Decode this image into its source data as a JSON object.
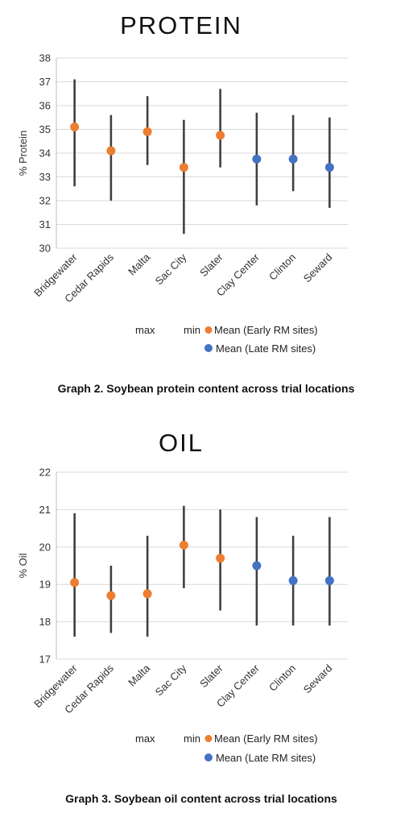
{
  "chart_data": [
    {
      "type": "scatter",
      "title": "PROTEIN",
      "ylabel": "% Protein",
      "ylim": [
        30,
        38
      ],
      "yticks": [
        30,
        31,
        32,
        33,
        34,
        35,
        36,
        37,
        38
      ],
      "grid": true,
      "categories": [
        "Bridgewater",
        "Cedar Rapids",
        "Malta",
        "Sac City",
        "Slater",
        "Clay Center",
        "Clinton",
        "Seward"
      ],
      "max": [
        37.1,
        35.6,
        36.4,
        35.4,
        36.7,
        35.7,
        35.6,
        35.5
      ],
      "min": [
        32.6,
        32.0,
        33.5,
        30.6,
        33.4,
        31.8,
        32.4,
        31.7
      ],
      "mean": [
        35.1,
        34.1,
        34.9,
        33.4,
        34.75,
        33.75,
        33.75,
        33.4
      ],
      "group": [
        "early",
        "early",
        "early",
        "early",
        "early",
        "late",
        "late",
        "late"
      ],
      "legend": {
        "max_label": "max",
        "min_label": "min",
        "early_label": "Mean (Early RM sites)",
        "late_label": "Mean (Late RM sites)",
        "placement": "bottom"
      },
      "caption": "Graph 2. Soybean protein content across trial locations"
    },
    {
      "type": "scatter",
      "title": "OIL",
      "ylabel": "% Oil",
      "ylim": [
        17,
        22
      ],
      "yticks": [
        17,
        18,
        19,
        20,
        21,
        22
      ],
      "grid": true,
      "categories": [
        "Bridgewater",
        "Cedar Rapids",
        "Malta",
        "Sac City",
        "Slater",
        "Clay Center",
        "Clinton",
        "Seward"
      ],
      "max": [
        20.9,
        19.5,
        20.3,
        21.1,
        21.0,
        20.8,
        20.3,
        20.8
      ],
      "min": [
        17.6,
        17.7,
        17.6,
        18.9,
        18.3,
        17.9,
        17.9,
        17.9
      ],
      "mean": [
        19.05,
        18.7,
        18.75,
        20.05,
        19.7,
        19.5,
        19.1,
        19.1
      ],
      "group": [
        "early",
        "early",
        "early",
        "early",
        "early",
        "late",
        "late",
        "late"
      ],
      "legend": {
        "max_label": "max",
        "min_label": "min",
        "early_label": "Mean (Early RM sites)",
        "late_label": "Mean (Late RM sites)",
        "placement": "bottom"
      },
      "caption": "Graph 3.  Soybean oil content across trial locations"
    }
  ],
  "colors": {
    "early": "#ED7D31",
    "late": "#4472C4",
    "whisker": "#404040",
    "grid": "#D9D9D9"
  }
}
